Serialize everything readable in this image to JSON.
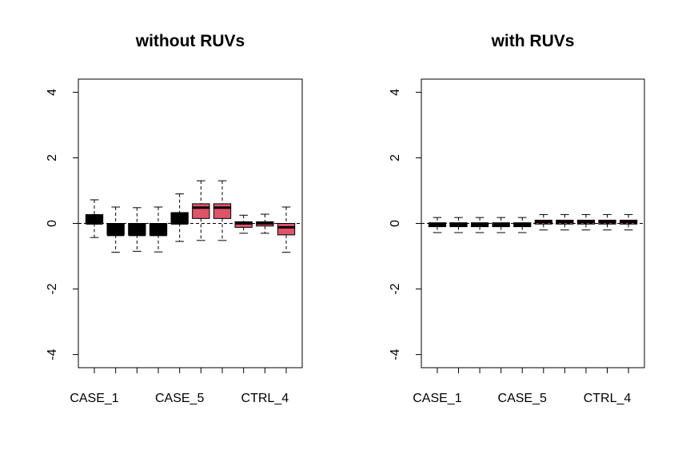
{
  "chart_data": [
    {
      "type": "boxplot",
      "title": "without RUVs",
      "xlabel": "",
      "ylabel": "",
      "ylim": [
        -4.4,
        4.4
      ],
      "yticks": [
        -4,
        -2,
        0,
        2,
        4
      ],
      "xtick_labels": [
        {
          "index": 0,
          "label": "CASE_1"
        },
        {
          "index": 4,
          "label": "CASE_5"
        },
        {
          "index": 8,
          "label": "CTRL_4"
        }
      ],
      "reference_line": 0,
      "boxes": [
        {
          "group": "case",
          "lower": -0.43,
          "q1": 0.0,
          "median": 0.0,
          "q3": 0.27,
          "upper": 0.72
        },
        {
          "group": "case",
          "lower": -0.88,
          "q1": -0.35,
          "median": -0.35,
          "q3": 0.0,
          "upper": 0.5
        },
        {
          "group": "case",
          "lower": -0.85,
          "q1": -0.35,
          "median": -0.35,
          "q3": 0.0,
          "upper": 0.48
        },
        {
          "group": "case",
          "lower": -0.87,
          "q1": -0.35,
          "median": -0.35,
          "q3": 0.0,
          "upper": 0.5
        },
        {
          "group": "case",
          "lower": -0.55,
          "q1": 0.0,
          "median": 0.0,
          "q3": 0.33,
          "upper": 0.9
        },
        {
          "group": "ctrl",
          "lower": -0.52,
          "q1": 0.15,
          "median": 0.48,
          "q3": 0.6,
          "upper": 1.3
        },
        {
          "group": "ctrl",
          "lower": -0.52,
          "q1": 0.15,
          "median": 0.48,
          "q3": 0.6,
          "upper": 1.3
        },
        {
          "group": "ctrl",
          "lower": -0.3,
          "q1": -0.12,
          "median": 0.0,
          "q3": 0.05,
          "upper": 0.25
        },
        {
          "group": "ctrl",
          "lower": -0.3,
          "q1": -0.08,
          "median": 0.0,
          "q3": 0.05,
          "upper": 0.28
        },
        {
          "group": "ctrl",
          "lower": -0.88,
          "q1": -0.35,
          "median": -0.12,
          "q3": 0.0,
          "upper": 0.5
        }
      ]
    },
    {
      "type": "boxplot",
      "title": "with RUVs",
      "xlabel": "",
      "ylabel": "",
      "ylim": [
        -4.4,
        4.4
      ],
      "yticks": [
        -4,
        -2,
        0,
        2,
        4
      ],
      "xtick_labels": [
        {
          "index": 0,
          "label": "CASE_1"
        },
        {
          "index": 4,
          "label": "CASE_5"
        },
        {
          "index": 8,
          "label": "CTRL_4"
        }
      ],
      "reference_line": 0,
      "boxes": [
        {
          "group": "case",
          "lower": -0.28,
          "q1": -0.1,
          "median": -0.05,
          "q3": 0.02,
          "upper": 0.18
        },
        {
          "group": "case",
          "lower": -0.28,
          "q1": -0.1,
          "median": -0.05,
          "q3": 0.02,
          "upper": 0.18
        },
        {
          "group": "case",
          "lower": -0.28,
          "q1": -0.1,
          "median": -0.05,
          "q3": 0.02,
          "upper": 0.18
        },
        {
          "group": "case",
          "lower": -0.28,
          "q1": -0.1,
          "median": -0.05,
          "q3": 0.02,
          "upper": 0.18
        },
        {
          "group": "case",
          "lower": -0.28,
          "q1": -0.1,
          "median": -0.05,
          "q3": 0.02,
          "upper": 0.18
        },
        {
          "group": "ctrl",
          "lower": -0.2,
          "q1": -0.02,
          "median": 0.05,
          "q3": 0.1,
          "upper": 0.27
        },
        {
          "group": "ctrl",
          "lower": -0.2,
          "q1": -0.02,
          "median": 0.05,
          "q3": 0.1,
          "upper": 0.27
        },
        {
          "group": "ctrl",
          "lower": -0.2,
          "q1": -0.02,
          "median": 0.05,
          "q3": 0.1,
          "upper": 0.27
        },
        {
          "group": "ctrl",
          "lower": -0.2,
          "q1": -0.02,
          "median": 0.05,
          "q3": 0.1,
          "upper": 0.27
        },
        {
          "group": "ctrl",
          "lower": -0.2,
          "q1": -0.02,
          "median": 0.05,
          "q3": 0.1,
          "upper": 0.27
        }
      ]
    }
  ],
  "colors": {
    "case": "#000000",
    "ctrl": "#DF536B",
    "axis": "#000000",
    "background": "#ffffff"
  }
}
